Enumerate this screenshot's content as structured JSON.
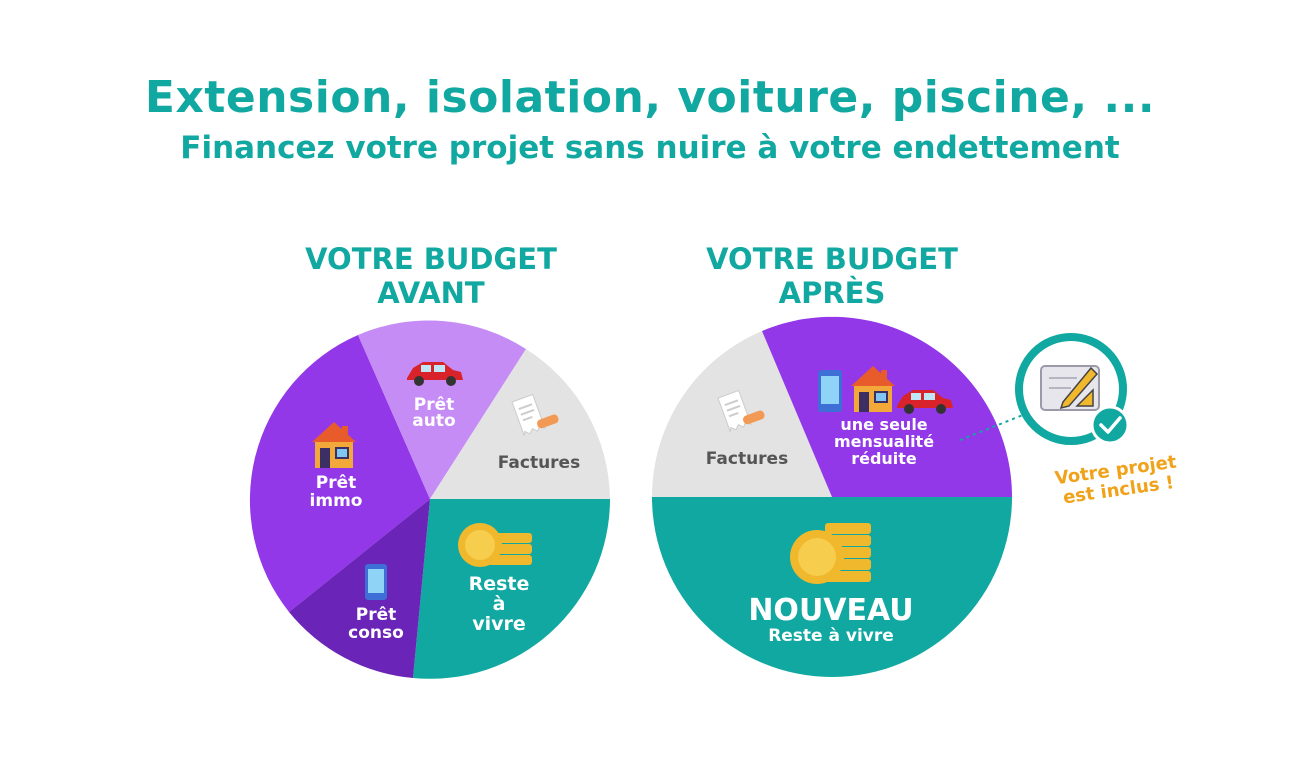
{
  "header": {
    "title": "Extension, isolation, voiture, piscine, ...",
    "subtitle": "Financez votre projet sans nuire à votre endettement"
  },
  "before": {
    "title_line1": "VOTRE BUDGET",
    "title_line2": "AVANT",
    "slices": {
      "pret_immo": {
        "line1": "Prêt",
        "line2": "immo"
      },
      "pret_auto": {
        "line1": "Prêt",
        "line2": "auto"
      },
      "factures": {
        "label": "Factures"
      },
      "reste": {
        "line1": "Reste",
        "line2": "à",
        "line3": "vivre"
      },
      "pret_conso": {
        "line1": "Prêt",
        "line2": "conso"
      }
    }
  },
  "after": {
    "title_line1": "VOTRE BUDGET",
    "title_line2": "APRÈS",
    "slices": {
      "factures": {
        "label": "Factures"
      },
      "mensualite": {
        "line1": "une seule",
        "line2": "mensualité",
        "line3": "réduite"
      },
      "nouveau": {
        "title": "NOUVEAU",
        "subtitle": "Reste à vivre"
      }
    }
  },
  "callout": {
    "line1": "Votre projet",
    "line2": "est inclus !"
  },
  "colors": {
    "teal": "#10a8a0",
    "purple": "#9238e8",
    "light_purple": "#c58cf5",
    "dark_purple": "#6b24b8",
    "grey": "#e3e3e3",
    "orange": "#f0a21a"
  },
  "icons": [
    "house-icon",
    "car-icon",
    "phone-icon",
    "receipt-icon",
    "coins-icon",
    "blueprint-icon",
    "check-icon"
  ]
}
